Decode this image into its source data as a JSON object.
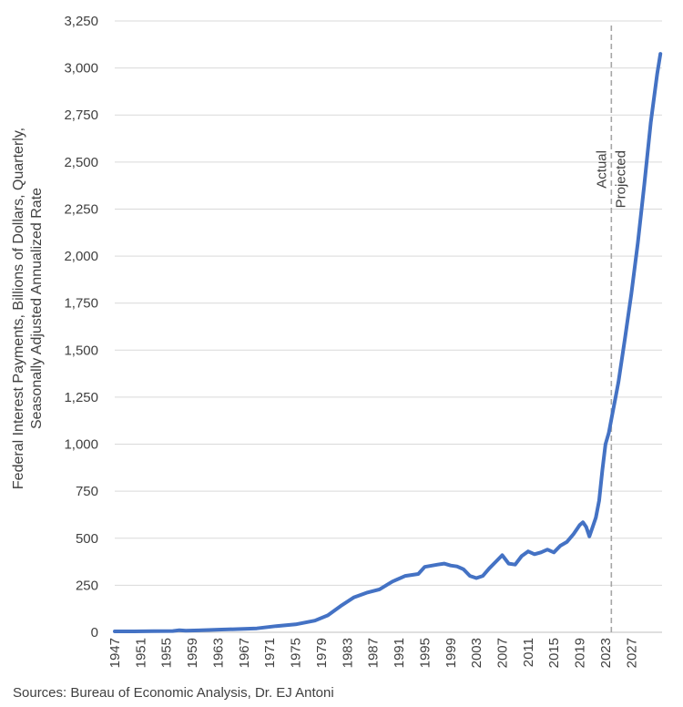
{
  "chart_data": {
    "type": "line",
    "title": "",
    "xlabel": "",
    "ylabel": "Federal Interest Payments, Billions of Dollars, Quarterly, Seasonally Adjusted Annualized Rate",
    "ylabel_lines": [
      "Federal Interest Payments, Billions of Dollars, Quarterly,",
      "Seasonally Adjusted Annualized Rate"
    ],
    "ylim": [
      0,
      3250
    ],
    "yticks": [
      0,
      250,
      500,
      750,
      1000,
      1250,
      1500,
      1750,
      2000,
      2250,
      2500,
      2750,
      3000,
      3250
    ],
    "ytick_labels": [
      "0",
      "250",
      "500",
      "750",
      "1,000",
      "1,250",
      "1,500",
      "1,750",
      "2,000",
      "2,250",
      "2,500",
      "2,750",
      "3,000",
      "3,250"
    ],
    "xlim": [
      1947,
      2031.75
    ],
    "xtick_labels": [
      "1947",
      "1951",
      "1955",
      "1959",
      "1963",
      "1967",
      "1971",
      "1975",
      "1979",
      "1983",
      "1987",
      "1991",
      "1995",
      "1999",
      "2003",
      "2007",
      "2011",
      "2015",
      "2019",
      "2023",
      "2027"
    ],
    "grid": true,
    "series_color": "#4472c4",
    "divider": {
      "x": 2023.9,
      "left_label": "Actual",
      "right_label": "Projected",
      "color": "#a6a6a6"
    },
    "series": [
      {
        "x": [
          1947,
          1950,
          1953,
          1956,
          1957,
          1958,
          1960,
          1963,
          1966,
          1969,
          1972,
          1975,
          1978,
          1980,
          1982,
          1984,
          1986,
          1988,
          1990,
          1992,
          1994,
          1995,
          1997,
          1998,
          1999,
          2000,
          2001,
          2002,
          2003,
          2004,
          2005,
          2006,
          2007,
          2008,
          2009,
          2010,
          2011,
          2012,
          2013,
          2014,
          2015,
          2016,
          2017,
          2018,
          2019,
          2019.5,
          2020,
          2020.5,
          2021,
          2021.5,
          2022,
          2022.5,
          2023,
          2023.5,
          2024,
          2024.5,
          2025,
          2026,
          2027,
          2028,
          2029,
          2030,
          2031,
          2031.5
        ],
        "y": [
          5,
          5,
          6,
          7,
          11,
          8,
          10,
          14,
          17,
          21,
          33,
          42,
          62,
          90,
          140,
          185,
          210,
          228,
          270,
          300,
          310,
          348,
          360,
          365,
          355,
          350,
          335,
          300,
          288,
          300,
          340,
          375,
          410,
          365,
          360,
          405,
          430,
          415,
          425,
          440,
          425,
          460,
          480,
          520,
          570,
          585,
          560,
          510,
          560,
          610,
          700,
          860,
          1000,
          1060,
          1150,
          1240,
          1330,
          1560,
          1800,
          2070,
          2380,
          2710,
          2970,
          3075
        ]
      }
    ]
  },
  "source_text": "Sources: Bureau of Economic Analysis, Dr. EJ Antoni"
}
